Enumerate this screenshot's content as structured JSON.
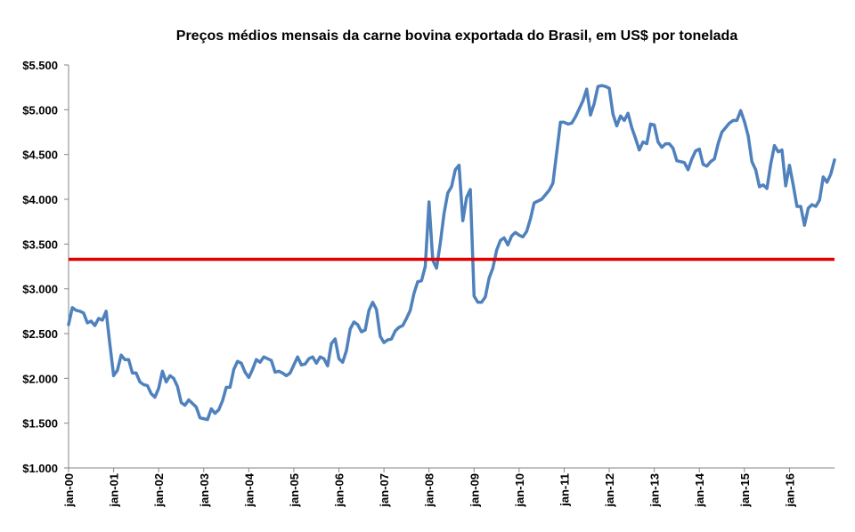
{
  "chart_data": {
    "type": "line",
    "title": "Preços médios mensais da carne bovina exportada do Brasil, em US$ por tonelada",
    "xlabel": "",
    "ylabel": "",
    "ylim": [
      1000,
      5500
    ],
    "y_ticks": [
      {
        "value": 1000,
        "label": "$1.000"
      },
      {
        "value": 1500,
        "label": "$1.500"
      },
      {
        "value": 2000,
        "label": "$2.000"
      },
      {
        "value": 2500,
        "label": "$2.500"
      },
      {
        "value": 3000,
        "label": "$3.000"
      },
      {
        "value": 3500,
        "label": "$3.500"
      },
      {
        "value": 4000,
        "label": "$4.000"
      },
      {
        "value": 4500,
        "label": "$4.500"
      },
      {
        "value": 5000,
        "label": "$5.000"
      },
      {
        "value": 5500,
        "label": "$5.500"
      }
    ],
    "x_ticks": [
      {
        "index": 0,
        "label": "jan-00"
      },
      {
        "index": 12,
        "label": "jan-01"
      },
      {
        "index": 24,
        "label": "jan-02"
      },
      {
        "index": 36,
        "label": "jan-03"
      },
      {
        "index": 48,
        "label": "jan-04"
      },
      {
        "index": 60,
        "label": "jan-05"
      },
      {
        "index": 72,
        "label": "jan-06"
      },
      {
        "index": 84,
        "label": "jan-07"
      },
      {
        "index": 96,
        "label": "jan-08"
      },
      {
        "index": 108,
        "label": "jan-09"
      },
      {
        "index": 120,
        "label": "jan-10"
      },
      {
        "index": 132,
        "label": "jan-11"
      },
      {
        "index": 144,
        "label": "jan-12"
      },
      {
        "index": 156,
        "label": "jan-13"
      },
      {
        "index": 168,
        "label": "jan-14"
      },
      {
        "index": 180,
        "label": "jan-15"
      },
      {
        "index": 192,
        "label": "jan-16"
      }
    ],
    "series": [
      {
        "name": "Preço médio mensal (US$/t)",
        "color": "#4f81bd",
        "start": "jan-00",
        "values": [
          2600,
          2790,
          2760,
          2750,
          2730,
          2620,
          2640,
          2590,
          2670,
          2650,
          2750,
          2380,
          2030,
          2090,
          2260,
          2210,
          2210,
          2060,
          2060,
          1960,
          1930,
          1920,
          1830,
          1790,
          1890,
          2080,
          1960,
          2030,
          2000,
          1910,
          1730,
          1700,
          1760,
          1720,
          1680,
          1560,
          1550,
          1540,
          1660,
          1610,
          1650,
          1750,
          1900,
          1900,
          2100,
          2190,
          2170,
          2070,
          2010,
          2100,
          2210,
          2180,
          2240,
          2220,
          2200,
          2070,
          2080,
          2060,
          2030,
          2060,
          2150,
          2240,
          2150,
          2160,
          2220,
          2240,
          2170,
          2240,
          2220,
          2140,
          2390,
          2440,
          2220,
          2180,
          2310,
          2550,
          2630,
          2600,
          2520,
          2540,
          2760,
          2850,
          2770,
          2470,
          2400,
          2430,
          2440,
          2530,
          2570,
          2590,
          2670,
          2760,
          2950,
          3080,
          3090,
          3250,
          3970,
          3320,
          3230,
          3510,
          3840,
          4070,
          4140,
          4330,
          4380,
          3760,
          4020,
          4110,
          2920,
          2850,
          2850,
          2910,
          3120,
          3230,
          3430,
          3540,
          3570,
          3490,
          3590,
          3630,
          3600,
          3580,
          3640,
          3780,
          3960,
          3980,
          4000,
          4050,
          4100,
          4180,
          4520,
          4860,
          4860,
          4840,
          4850,
          4920,
          5010,
          5100,
          5230,
          4940,
          5070,
          5260,
          5270,
          5260,
          5240,
          4950,
          4820,
          4930,
          4880,
          4960,
          4800,
          4680,
          4550,
          4640,
          4620,
          4840,
          4830,
          4640,
          4580,
          4620,
          4620,
          4570,
          4430,
          4420,
          4410,
          4330,
          4450,
          4540,
          4560,
          4390,
          4370,
          4420,
          4450,
          4620,
          4750,
          4800,
          4850,
          4880,
          4880,
          4990,
          4870,
          4710,
          4420,
          4330,
          4140,
          4160,
          4120,
          4390,
          4600,
          4530,
          4550,
          4150,
          4380,
          4160,
          3920,
          3920,
          3710,
          3900,
          3940,
          3920,
          3990,
          4250,
          4190,
          4280,
          4440
        ]
      }
    ],
    "reference_line": {
      "value": 3330,
      "color": "#e00000"
    }
  }
}
